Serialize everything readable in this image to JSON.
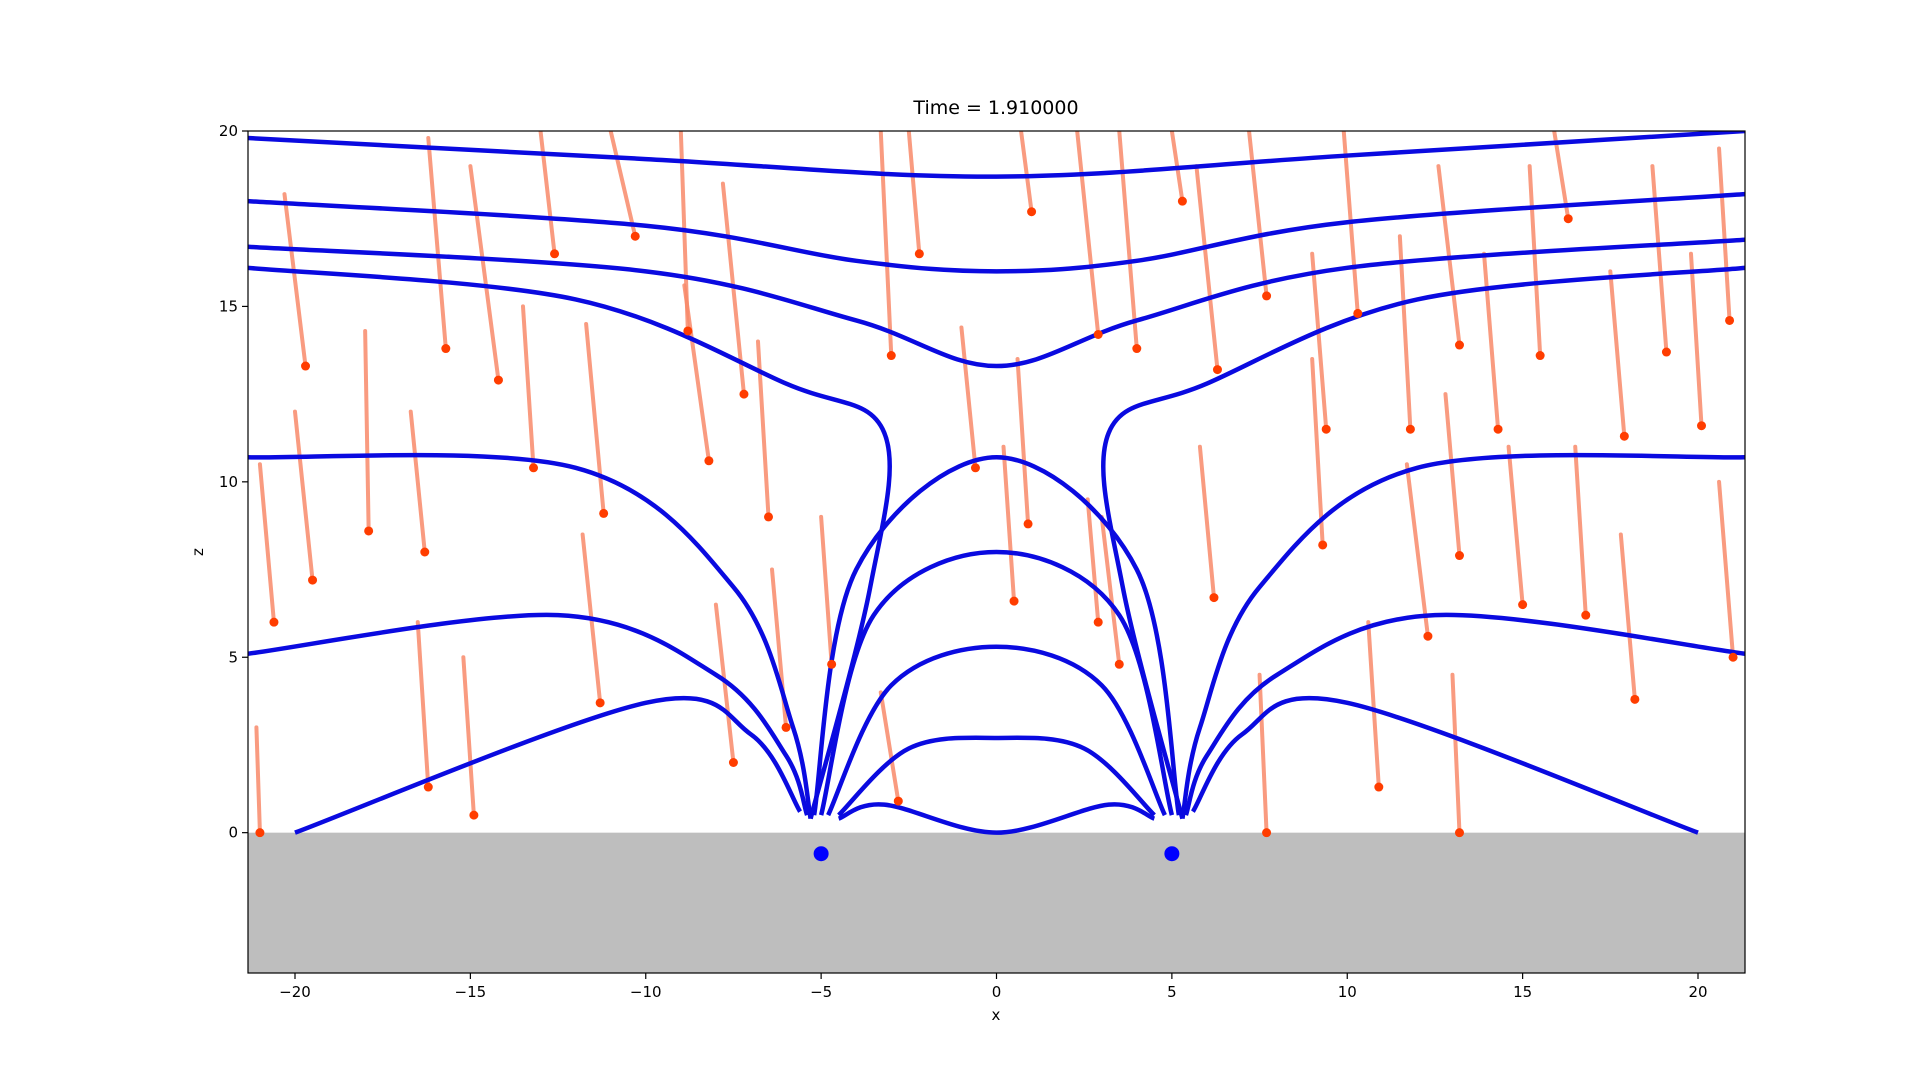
{
  "chart_data": {
    "type": "field",
    "title": "Time = 1.910000",
    "x_label": "x",
    "y_label": "z",
    "xlim": [
      -21.34,
      21.34
    ],
    "ylim": [
      -4,
      20
    ],
    "xticks": [
      {
        "value": -20,
        "label": "−20"
      },
      {
        "value": -15,
        "label": "−15"
      },
      {
        "value": -10,
        "label": "−10"
      },
      {
        "value": -5,
        "label": "−5"
      },
      0,
      5,
      10,
      15,
      20
    ],
    "yticks": [
      0,
      5,
      10,
      15,
      20
    ],
    "ground_color": "#bebebe",
    "field_line_color": "#0a0ae0",
    "trail_color": "#f88a6a",
    "head_color": "#ff3d00",
    "field_lines": [
      {
        "x": [
          -21.34,
          -10,
          0,
          10,
          21.34
        ],
        "y": [
          19.8,
          19.2,
          18.7,
          19.3,
          20
        ]
      },
      {
        "x": [
          -21.34,
          -10,
          -4,
          0,
          4,
          10,
          21.34
        ],
        "y": [
          18,
          17.3,
          16.3,
          16,
          16.3,
          17.4,
          18.2
        ]
      },
      {
        "x": [
          -21.34,
          -10,
          -4,
          0,
          4,
          10,
          21.34
        ],
        "y": [
          16.7,
          16,
          14.6,
          13.3,
          14.6,
          16.1,
          16.9
        ]
      },
      {
        "x": [
          -21.34,
          -12,
          -6,
          -3.2,
          -3.6,
          -5.3
        ],
        "y": [
          16.1,
          15.2,
          12.8,
          11.4,
          7,
          0.4
        ]
      },
      {
        "x": [
          5.3,
          3.6,
          3.2,
          6,
          12,
          21.34
        ],
        "y": [
          0.4,
          7,
          11.4,
          12.8,
          15.2,
          16.1
        ]
      },
      {
        "x": [
          -21.34,
          -12,
          -7.5,
          -5.8,
          -5.3
        ],
        "y": [
          10.7,
          10.4,
          7,
          3,
          0.4
        ]
      },
      {
        "x": [
          5.3,
          5.8,
          7.5,
          12,
          21.34
        ],
        "y": [
          0.4,
          3,
          7,
          10.4,
          10.7
        ]
      },
      {
        "x": [
          -21.34,
          -12.5,
          -8,
          -6,
          -5.4
        ],
        "y": [
          5.1,
          6.2,
          4.5,
          2.2,
          0.5
        ]
      },
      {
        "x": [
          5.4,
          6,
          8,
          12.5,
          21.34
        ],
        "y": [
          0.5,
          2.2,
          4.5,
          6.2,
          5.1
        ]
      },
      {
        "x": [
          -20,
          -10,
          -7,
          -5.6
        ],
        "y": [
          0,
          3.7,
          2.8,
          0.6
        ]
      },
      {
        "x": [
          5.6,
          7,
          10,
          20
        ],
        "y": [
          0.6,
          2.8,
          3.7,
          0
        ]
      },
      {
        "x": [
          -5.2,
          -4,
          0,
          4,
          5.2
        ],
        "y": [
          0.5,
          7.5,
          10.7,
          7.5,
          0.5
        ]
      },
      {
        "x": [
          -5,
          -3.5,
          0,
          3.5,
          5
        ],
        "y": [
          0.5,
          6.2,
          8,
          6.2,
          0.5
        ]
      },
      {
        "x": [
          -4.8,
          -3,
          0,
          3,
          4.8
        ],
        "y": [
          0.5,
          4.2,
          5.3,
          4.2,
          0.5
        ]
      },
      {
        "x": [
          -4.5,
          -2.5,
          0,
          2.5,
          4.5
        ],
        "y": [
          0.5,
          2.4,
          2.7,
          2.4,
          0.5
        ]
      },
      {
        "x": [
          -4.5,
          -3.2,
          0,
          3.2,
          4.5
        ],
        "y": [
          0.4,
          0.8,
          0,
          0.8,
          0.4
        ]
      }
    ],
    "dipoles": {
      "x": [
        -5,
        5
      ],
      "y": [
        -0.6,
        -0.6
      ],
      "color": "#0000ff"
    },
    "particles": {
      "x": [
        -20.6,
        -19.7,
        -19.5,
        -16.3,
        -17.9,
        -15.7,
        -14.2,
        -13.2,
        -12.6,
        -11.2,
        -10.3,
        -8.8,
        -8.2,
        -7.2,
        -6.5,
        -4.7,
        -3.0,
        -2.2,
        -0.6,
        0.9,
        0.5,
        1.0,
        2.9,
        2.9,
        3.5,
        4.0,
        5.3,
        6.3,
        6.2,
        7.7,
        9.4,
        9.3,
        10.3,
        11.8,
        12.3,
        13.2,
        13.2,
        14.3,
        15.0,
        15.5,
        16.8,
        16.3,
        17.9,
        18.2,
        19.1,
        20.1,
        20.9,
        21.0,
        -16.2,
        -11.3,
        -7.5,
        -2.8,
        7.7,
        10.9,
        -21.0,
        -14.9,
        13.2,
        -6.0
      ],
      "z": [
        6.0,
        13.3,
        7.2,
        8.0,
        8.6,
        13.8,
        12.9,
        10.4,
        16.5,
        9.1,
        17.0,
        14.3,
        10.6,
        12.5,
        9.0,
        4.8,
        13.6,
        16.5,
        10.4,
        8.8,
        6.6,
        17.7,
        6.0,
        14.2,
        4.8,
        13.8,
        18.0,
        13.2,
        6.7,
        15.3,
        11.5,
        8.2,
        14.8,
        11.5,
        5.6,
        7.9,
        13.9,
        11.5,
        6.5,
        13.6,
        6.2,
        17.5,
        11.3,
        3.8,
        13.7,
        11.6,
        14.6,
        5.0,
        1.3,
        3.7,
        2.0,
        0.9,
        0,
        1.3,
        0,
        0.5,
        0,
        3.0
      ],
      "tail_x": [
        -21.0,
        -20.3,
        -20.0,
        -16.7,
        -18.0,
        -16.2,
        -15.0,
        -13.5,
        -13.0,
        -11.7,
        -11.0,
        -9.0,
        -8.9,
        -7.8,
        -6.8,
        -5.0,
        -3.3,
        -2.5,
        -1.0,
        0.6,
        0.2,
        0.7,
        2.6,
        2.3,
        3.0,
        3.5,
        5.0,
        5.7,
        5.8,
        7.2,
        9.0,
        9.0,
        9.9,
        11.5,
        11.7,
        12.8,
        12.6,
        13.9,
        14.6,
        15.2,
        16.5,
        15.9,
        17.5,
        17.8,
        18.7,
        19.8,
        20.6,
        20.6,
        -16.5,
        -11.8,
        -8.0,
        -3.3,
        7.5,
        10.6,
        -21.1,
        -15.2,
        13.0,
        -6.4
      ],
      "tail_z": [
        10.5,
        18.2,
        12.0,
        12.0,
        14.3,
        19.8,
        19.0,
        15.0,
        20,
        14.5,
        20,
        20,
        15.6,
        18.5,
        14.0,
        9.0,
        20,
        20,
        14.4,
        13.5,
        11.0,
        20,
        9.5,
        20,
        9.0,
        20,
        20,
        19.0,
        11.0,
        20,
        16.5,
        13.5,
        20,
        17.0,
        10.5,
        12.5,
        19.0,
        16.5,
        11.0,
        19.0,
        11.0,
        20,
        16.0,
        8.5,
        19.0,
        16.5,
        19.5,
        10.0,
        6.0,
        8.5,
        6.5,
        4.0,
        4.5,
        6.0,
        3.0,
        5.0,
        4.5,
        7.5
      ]
    }
  }
}
